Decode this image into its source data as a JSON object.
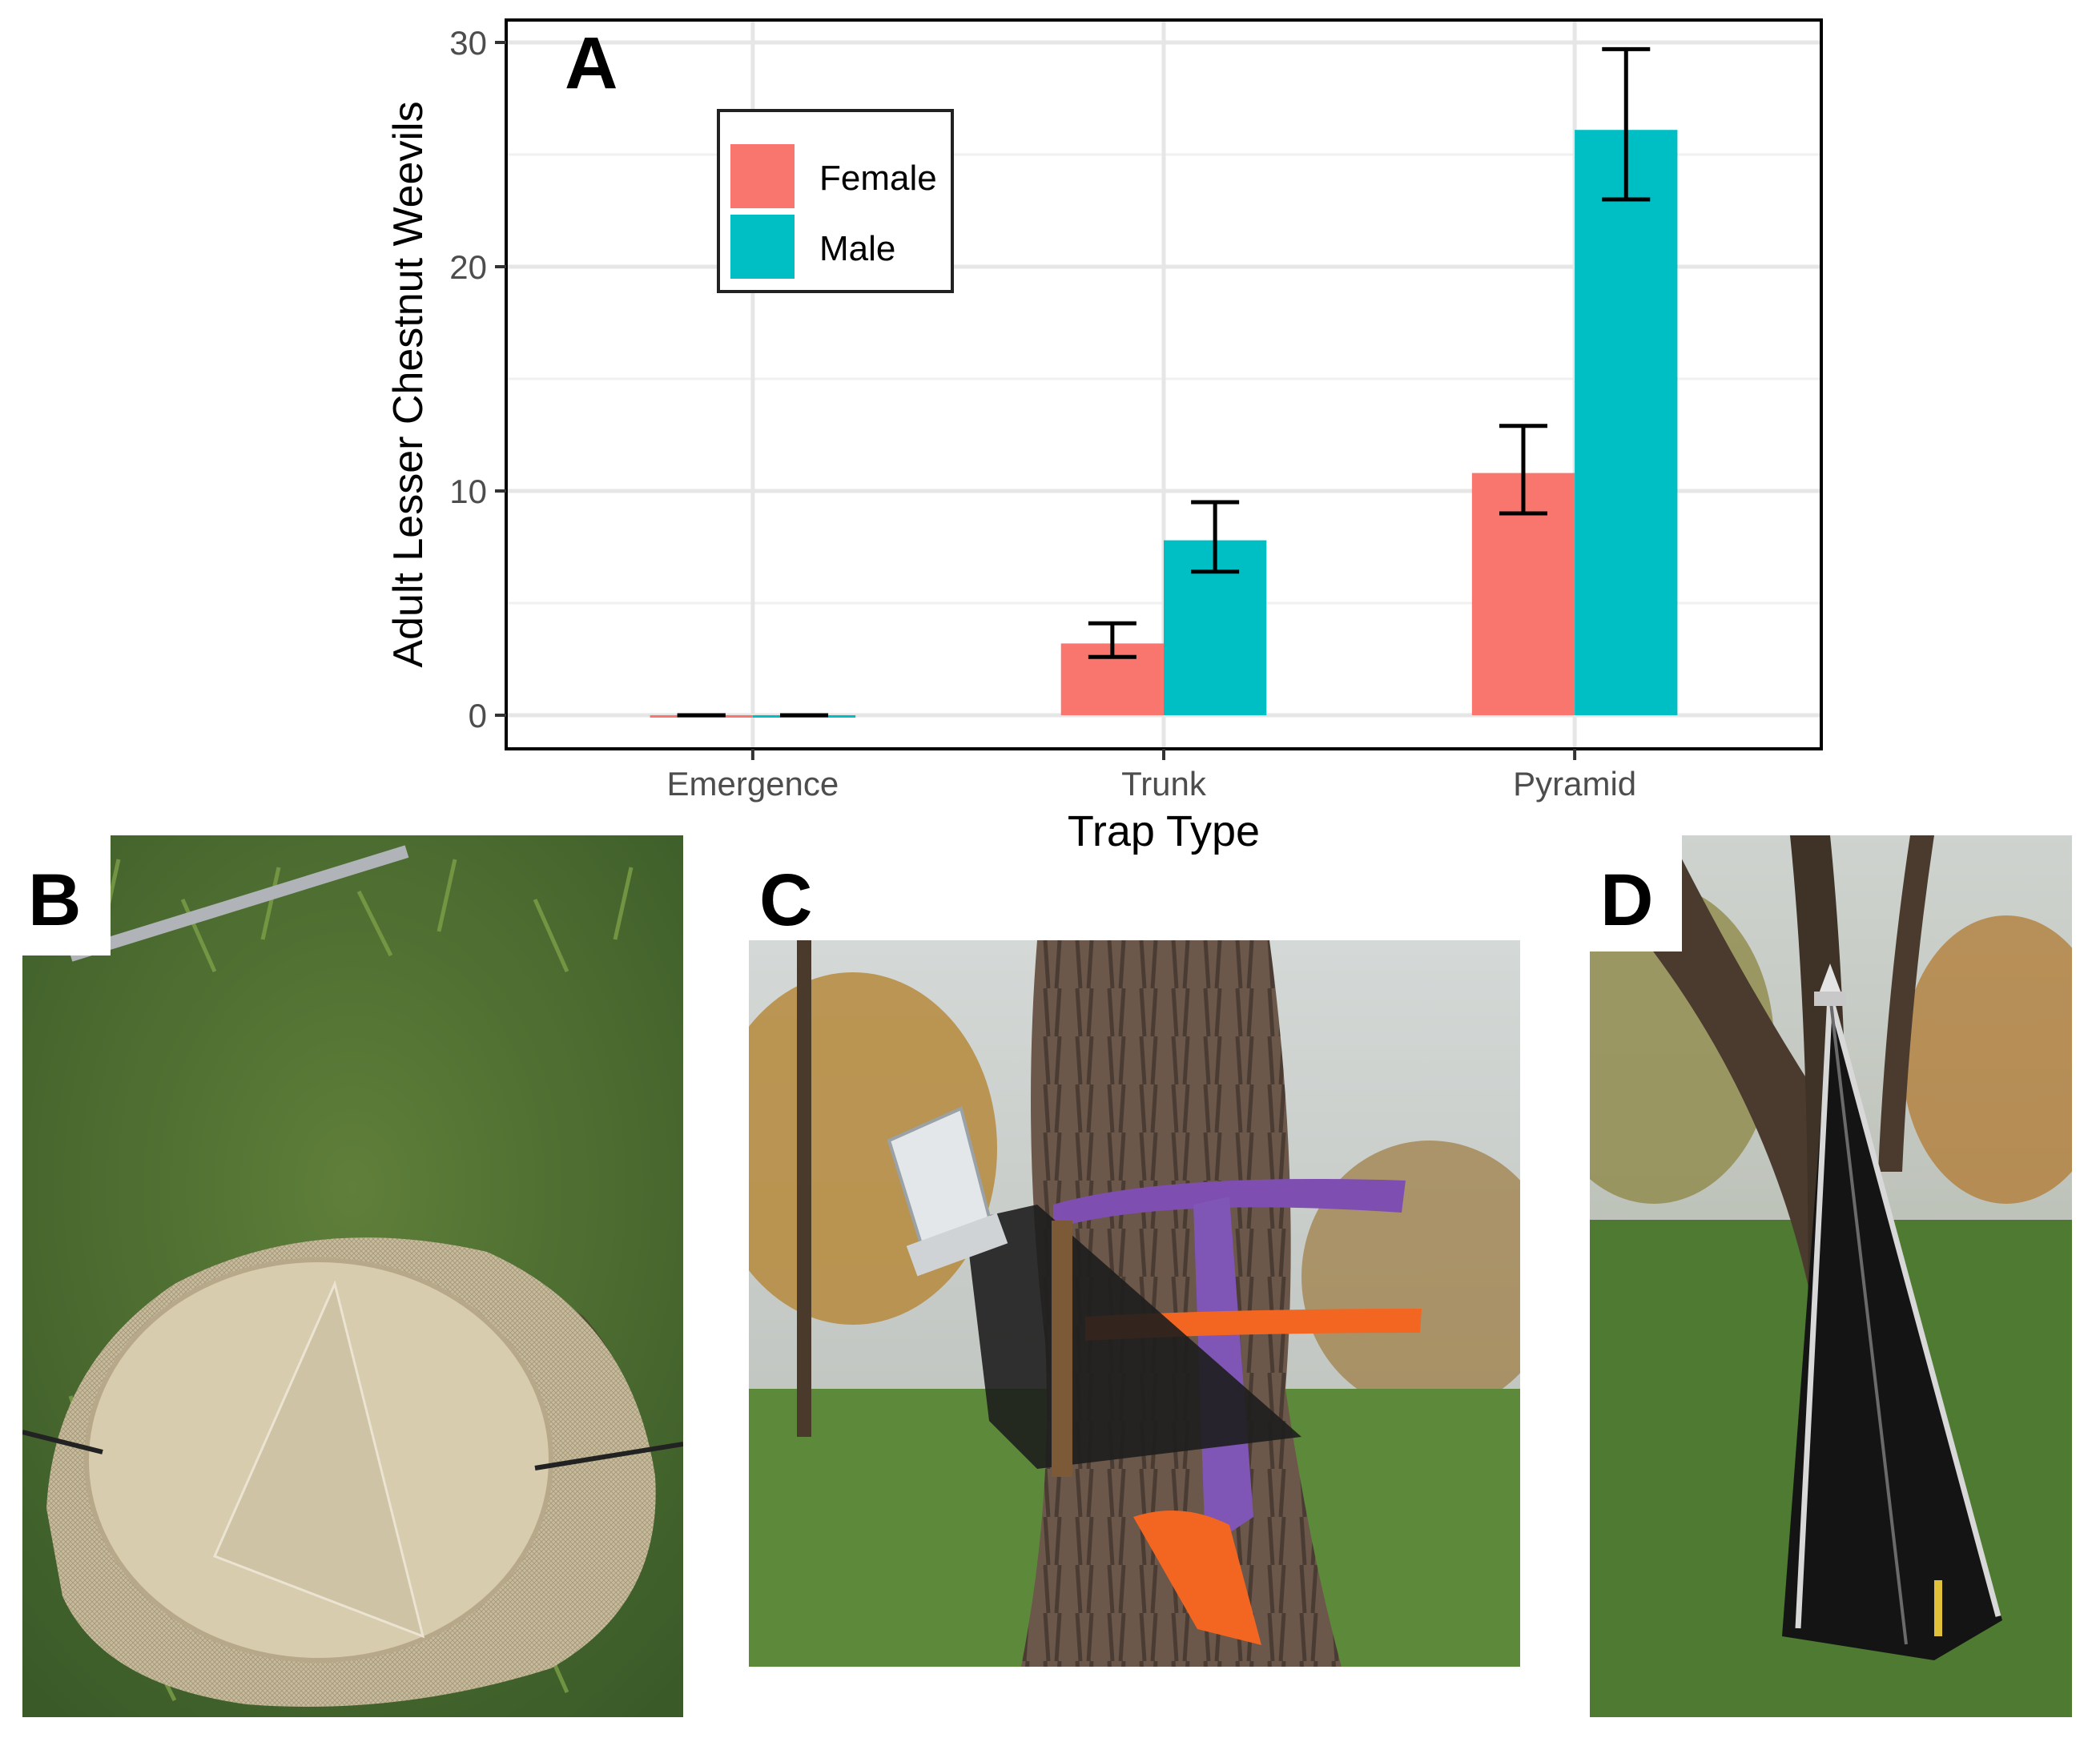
{
  "chart_data": {
    "type": "bar",
    "panel_label": "A",
    "categories": [
      "Emergence",
      "Trunk",
      "Pyramid"
    ],
    "xlabel": "Trap Type",
    "ylabel": "Adult Lesser Chestnut Weevils",
    "ylim": [
      -1.5,
      31
    ],
    "yticks": [
      0,
      10,
      20,
      30
    ],
    "grid": true,
    "legend_placement": "top-left",
    "series": [
      {
        "name": "Female",
        "color": "#F8766D",
        "values": [
          0,
          3.2,
          10.8
        ],
        "err_low": [
          0,
          2.6,
          9.0
        ],
        "err_high": [
          0,
          4.1,
          12.9
        ]
      },
      {
        "name": "Male",
        "color": "#00BFC4",
        "values": [
          0,
          7.8,
          26.1
        ],
        "err_low": [
          0,
          6.4,
          23.0
        ],
        "err_high": [
          0,
          9.5,
          29.7
        ]
      }
    ]
  },
  "photos": [
    {
      "label": "B",
      "icon": "emergence-trap-photo"
    },
    {
      "label": "C",
      "icon": "trunk-trap-photo"
    },
    {
      "label": "D",
      "icon": "pyramid-trap-photo"
    }
  ]
}
